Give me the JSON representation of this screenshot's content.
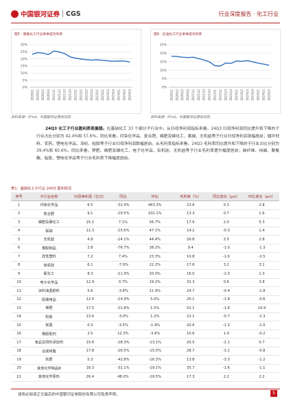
{
  "header": {
    "brand": "中国银河证券",
    "brand_en": "CGS",
    "report_type": "行业深度报告 · 化工行业"
  },
  "chart_data": [
    {
      "type": "line",
      "title": "图5：基础化工行业单季度毛利率",
      "x": [
        "2020Q1",
        "2020Q2",
        "2020Q3",
        "2020Q4",
        "2021Q1",
        "2021Q2",
        "2021Q3",
        "2021Q4",
        "2022Q1",
        "2022Q2",
        "2022Q3",
        "2022Q4",
        "2023Q1",
        "2023Q2",
        "2023Q3",
        "2023Q4",
        "2024Q1",
        "2024Q2",
        "2024Q3"
      ],
      "series": [
        {
          "values": [
            23.2,
            24.4,
            24.0,
            23.0,
            25.5,
            24.8,
            23.6,
            21.4,
            20.4,
            19.9,
            19.4,
            19.1,
            19.3,
            18.9,
            18.6,
            18.3,
            18.5,
            18.4,
            17.8
          ]
        }
      ],
      "ylim": [
        0,
        30
      ],
      "yticks": [
        "0%",
        "5%",
        "10%",
        "15%",
        "20%",
        "25%",
        "30%"
      ],
      "grid": true
    },
    {
      "type": "line",
      "title": "图6：石油化工行业单季度毛利率",
      "x": [
        "2020Q1",
        "2020Q2",
        "2020Q3",
        "2020Q4",
        "2021Q1",
        "2021Q2",
        "2021Q3",
        "2021Q4",
        "2022Q1",
        "2022Q2",
        "2022Q3",
        "2022Q4",
        "2023Q1",
        "2023Q2",
        "2023Q3",
        "2023Q4",
        "2024Q1",
        "2024Q2",
        "2024Q3"
      ],
      "series": [
        {
          "values": [
            18.2,
            18.0,
            17.6,
            17.4,
            17.6,
            16.8,
            16.0,
            14.9,
            12.6,
            12.4,
            14.2,
            14.0,
            15.4,
            15.2,
            15.6,
            14.9,
            14.1,
            13.6,
            12.9
          ]
        }
      ],
      "ylim": [
        0,
        25
      ],
      "yticks": [
        "0%",
        "5%",
        "10%",
        "15%",
        "20%",
        "25%"
      ],
      "grid": true
    }
  ],
  "figures": {
    "fig5_title": "图5：基础化工行业单季度毛利率",
    "fig6_title": "图6：石油化工行业单季度毛利率",
    "source_left": "资料来源：iFind，中国银河证券研究院",
    "source_right": "资料来源：iFind，中国银河证券研究院"
  },
  "paragraph": {
    "lead": "24Q3 化工子行业盈利表现偏弱。",
    "body": "在基础化工 33 个细分子行业中，从归母净利润指标来看，24Q3 归母净利润同比提升和下降的子行业占比分别为 42.4%和 57.6%，同比来看，印染化学品、复合肥、磷肥及磷化工、氯碱、无机盐等子行业归母净利润涨幅居前；循环材料、农药、锂电化学品、涤纶、粘胶等子行业归母净利润跌幅居前。从毛利率指标来看，24Q3 毛利率同比提升和下降的子行业占比分别为 39.4%和 60.6%，同比来看，钾肥、磷肥及磷化工、电子化学品、有机硅、无机盐等子行业毛利率提升幅度居前；碳纤维、纯碱、聚氨酯、粘胶、锂电化学品等子行业毛利率下降幅度居前。"
  },
  "table": {
    "title": "表1：基础化工子行业 24Q3 盈利情况",
    "headers": [
      "序号",
      "子行业名称",
      "归母净利润（亿元）",
      "同比",
      "环比",
      "毛利率（%）",
      "同比变化（pct）",
      "环比变化（pct）"
    ],
    "rows": [
      [
        "1",
        "印染化学品",
        "6.5",
        "-32.4%",
        "463.3%",
        "23.6",
        "0.3",
        "2.8"
      ],
      [
        "2",
        "复合肥",
        "9.1",
        "-29.5%",
        "102.1%",
        "13.3",
        "0.7",
        "1.6"
      ],
      [
        "3",
        "磷肥及磷化工",
        "25.1",
        "7.1%",
        "56.7%",
        "17.9",
        "2.0",
        "5.3"
      ],
      [
        "4",
        "氯碱",
        "11.3",
        "-15.6%",
        "47.1%",
        "14.2",
        "-0.3",
        "1.4"
      ],
      [
        "5",
        "无机盐",
        "4.8",
        "-24.1%",
        "44.4%",
        "26.8",
        "2.5",
        "2.8"
      ],
      [
        "6",
        "橡胶制品",
        "2.8",
        "-76.7%",
        "38.2%",
        "9.4",
        "-1.0",
        "-1.3"
      ],
      [
        "7",
        "改性塑料",
        "7.2",
        "7.4%",
        "23.3%",
        "10.8",
        "-1.6",
        "-2.5"
      ],
      [
        "8",
        "有机硅",
        "6.1",
        "-7.0%",
        "22.2%",
        "17.6",
        "3.2",
        "3.1"
      ],
      [
        "9",
        "氟化工",
        "8.3",
        "-11.9%",
        "20.0%",
        "16.0",
        "-2.0",
        "1.3"
      ],
      [
        "10",
        "电子化学品",
        "12.9",
        "0.7%",
        "19.2%",
        "32.3",
        "0.6",
        "3.8"
      ],
      [
        "11",
        "涂料油墨颜料",
        "5.6",
        "-3.6%",
        "11.9%",
        "24.7",
        "-0.4",
        "-1.8"
      ],
      [
        "12",
        "民爆用品",
        "12.0",
        "-14.9%",
        "5.0%",
        "26.1",
        "-1.8",
        "-0.6"
      ],
      [
        "13",
        "钾肥",
        "17.5",
        "-21.8%",
        "1.5%",
        "52.1",
        "-1.6",
        "14.9"
      ],
      [
        "14",
        "轮胎",
        "23.6",
        "-3.0%",
        "1.2%",
        "22.1",
        "-0.7",
        "-1.3"
      ],
      [
        "15",
        "炭黑",
        "0.3",
        "-3.5%",
        "-1.9%",
        "20.6",
        "-1.3",
        "-1.0"
      ],
      [
        "16",
        "橡胶助剂",
        "2.5",
        "12.3%",
        "-3.6%",
        "10.6",
        "1.9",
        "-0.2"
      ],
      [
        "17",
        "食品及饲料添加剂",
        "15.6",
        "-28.3%",
        "-13.1%",
        "20.5",
        "-2.1",
        "0.7"
      ],
      [
        "18",
        "合成树脂",
        "17.8",
        "-26.5%",
        "-15.0%",
        "28.7",
        "-3.1",
        "-0.8"
      ],
      [
        "19",
        "氮肥",
        "5.3",
        "-42.8%",
        "-16.3%",
        "13.8",
        "-3.3",
        "-1.2"
      ],
      [
        "20",
        "其他化学制品Ⅲ",
        "16.3",
        "-31.1%",
        "-19.1%",
        "35.7",
        "-1.6",
        "-1.1"
      ],
      [
        "21",
        "其他化学原料",
        "26.4",
        "48.0%",
        "-19.5%",
        "17.3",
        "2.2",
        "2.2"
      ]
    ]
  },
  "footer": {
    "disclaimer": "请务必阅读正文最后的中国银河证券股份有限公司免责声明。",
    "page": "5"
  },
  "colors": {
    "brand_red": "#c8161d",
    "line": "#2f6fbf"
  }
}
